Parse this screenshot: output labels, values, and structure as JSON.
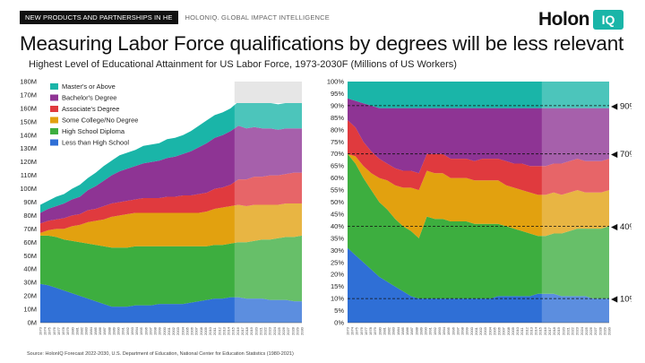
{
  "header": {
    "tag_label": "NEW PRODUCTS AND PARTNERSHIPS IN HE",
    "brand_sub": "HOLONIQ. GLOBAL IMPACT INTELLIGENCE",
    "logo_text": "Holon",
    "logo_iq": "IQ"
  },
  "title": "Measuring Labor Force qualifications by degrees will be less relevant",
  "subtitle": "Highest Level of Educational Attainment for US Labor Force, 1973-2030F (Millions of US Workers)",
  "source": "Source: HolonIQ Forecast 2022-2030, U.S. Department of Education, National Center for Education Statistics (1980-2021)",
  "colors": {
    "masters": "#1ab5a8",
    "bachelors": "#8e3494",
    "associates": "#e03a3e",
    "some_college": "#e2a10f",
    "high_school": "#3dae3f",
    "less_than_hs": "#2f6fd6"
  },
  "chart_data": [
    {
      "type": "area",
      "stacked": true,
      "x": [
        "1973",
        "1975",
        "1977",
        "1979",
        "1981",
        "1983",
        "1985",
        "1987",
        "1989",
        "1991",
        "1993",
        "1995",
        "1997",
        "1999",
        "2001",
        "2003",
        "2005",
        "2007",
        "2009",
        "2011",
        "2013",
        "2015",
        "2017",
        "2019",
        "2021",
        "2022",
        "2023",
        "2024",
        "2025",
        "2026",
        "2027",
        "2028",
        "2029",
        "2030"
      ],
      "x_labels": [
        "1973",
        "1974",
        "1975",
        "1976",
        "1977",
        "1978",
        "1979",
        "1980",
        "1981",
        "1982",
        "1983",
        "1984",
        "1985",
        "1986",
        "1987",
        "1988",
        "1989",
        "1990",
        "1991",
        "1992",
        "1993",
        "1994",
        "1995",
        "1996",
        "1997",
        "1998",
        "1999",
        "2000",
        "2001",
        "2002",
        "2003",
        "2004",
        "2005",
        "2006",
        "2007",
        "2008",
        "2009",
        "2010",
        "2011",
        "2012",
        "2013",
        "2014",
        "2015",
        "2016",
        "2017",
        "2018",
        "2019",
        "2020",
        "2021",
        "2022",
        "2023",
        "2024",
        "2025",
        "2026",
        "2027",
        "2028",
        "2029",
        "2030"
      ],
      "forecast_start": "2022",
      "ylim": [
        0,
        180
      ],
      "yticks": [
        "0M",
        "10M",
        "20M",
        "30M",
        "40M",
        "50M",
        "60M",
        "70M",
        "80M",
        "90M",
        "100M",
        "110M",
        "120M",
        "130M",
        "140M",
        "150M",
        "160M",
        "170M",
        "180M"
      ],
      "series": [
        {
          "name": "Less than High School",
          "key": "less_than_hs",
          "values": [
            29,
            28,
            26,
            24,
            22,
            20,
            18,
            16,
            14,
            12,
            12,
            12,
            13,
            13,
            13,
            14,
            14,
            14,
            14,
            15,
            16,
            17,
            18,
            18,
            19,
            19,
            18,
            18,
            18,
            17,
            17,
            17,
            16,
            16
          ]
        },
        {
          "name": "High School Diploma",
          "key": "high_school",
          "values": [
            36,
            37,
            38,
            38,
            39,
            40,
            41,
            42,
            43,
            44,
            44,
            44,
            44,
            44,
            44,
            43,
            43,
            43,
            43,
            42,
            41,
            40,
            40,
            40,
            40,
            41,
            42,
            43,
            44,
            45,
            46,
            47,
            48,
            49
          ]
        },
        {
          "name": "Some College/No Degree",
          "key": "some_college",
          "values": [
            2,
            4,
            6,
            8,
            11,
            13,
            16,
            18,
            20,
            23,
            24,
            25,
            25,
            25,
            25,
            25,
            25,
            25,
            25,
            25,
            25,
            26,
            27,
            28,
            28,
            28,
            27,
            27,
            26,
            26,
            25,
            25,
            25,
            24
          ]
        },
        {
          "name": "Associate's Degree",
          "key": "associates",
          "values": [
            7,
            7,
            7,
            8,
            8,
            8,
            9,
            9,
            10,
            10,
            10,
            10,
            10,
            11,
            11,
            11,
            12,
            12,
            13,
            13,
            14,
            14,
            15,
            15,
            16,
            19,
            20,
            21,
            21,
            22,
            22,
            22,
            23,
            23
          ]
        },
        {
          "name": "Bachelor's Degree",
          "key": "bachelors",
          "values": [
            8,
            9,
            10,
            11,
            12,
            13,
            15,
            17,
            19,
            21,
            23,
            24,
            25,
            26,
            27,
            28,
            29,
            30,
            31,
            33,
            35,
            37,
            38,
            39,
            40,
            40,
            38,
            37,
            36,
            35,
            34,
            34,
            33,
            33
          ]
        },
        {
          "name": "Master's or Above",
          "key": "masters",
          "values": [
            6,
            6,
            7,
            7,
            8,
            9,
            9,
            10,
            11,
            11,
            12,
            12,
            12,
            13,
            13,
            13,
            14,
            14,
            14,
            15,
            16,
            17,
            17,
            17,
            17,
            18,
            19,
            19,
            19,
            19,
            19,
            19,
            19,
            19
          ]
        }
      ]
    },
    {
      "type": "area",
      "stacked": true,
      "normalized": true,
      "ylim": [
        0,
        100
      ],
      "yticks": [
        "0%",
        "5%",
        "10%",
        "15%",
        "20%",
        "25%",
        "30%",
        "35%",
        "40%",
        "45%",
        "50%",
        "55%",
        "60%",
        "65%",
        "70%",
        "75%",
        "80%",
        "85%",
        "90%",
        "95%",
        "100%"
      ],
      "annotations": [
        {
          "value": 90,
          "label": "◀ 90%"
        },
        {
          "value": 70,
          "label": "◀ 70%"
        },
        {
          "value": 40,
          "label": "◀ 40%"
        },
        {
          "value": 10,
          "label": "◀ 10%"
        }
      ],
      "series": [
        {
          "name": "Less than High School",
          "key": "less_than_hs",
          "values": [
            31,
            28,
            25,
            22,
            19,
            17,
            15,
            13,
            11,
            10,
            10,
            10,
            10,
            10,
            10,
            10,
            10,
            10,
            10,
            11,
            11,
            11,
            11,
            11,
            12,
            12,
            12,
            11,
            11,
            11,
            11,
            10,
            10,
            10
          ]
        },
        {
          "name": "High School Diploma",
          "key": "high_school",
          "values": [
            39,
            38,
            35,
            33,
            31,
            30,
            28,
            27,
            27,
            25,
            34,
            33,
            33,
            32,
            32,
            32,
            31,
            31,
            31,
            30,
            29,
            28,
            27,
            26,
            24,
            24,
            25,
            26,
            27,
            28,
            28,
            29,
            29,
            30
          ]
        },
        {
          "name": "Some College/No Degree",
          "key": "some_college",
          "values": [
            0,
            3,
            5,
            7,
            10,
            12,
            14,
            16,
            18,
            20,
            19,
            19,
            19,
            18,
            18,
            18,
            18,
            18,
            18,
            18,
            17,
            17,
            17,
            17,
            17,
            17,
            17,
            16,
            16,
            16,
            15,
            15,
            15,
            15
          ]
        },
        {
          "name": "Associate's Degree",
          "key": "associates",
          "values": [
            14,
            12,
            10,
            9,
            8,
            7,
            7,
            7,
            7,
            7,
            7,
            8,
            8,
            8,
            8,
            8,
            8,
            9,
            9,
            9,
            10,
            10,
            11,
            11,
            12,
            12,
            12,
            13,
            13,
            13,
            13,
            13,
            13,
            13
          ]
        },
        {
          "name": "Bachelor's Degree",
          "key": "bachelors",
          "values": [
            9,
            11,
            16,
            19,
            21,
            23,
            25,
            26,
            26,
            27,
            19,
            19,
            19,
            21,
            21,
            21,
            22,
            21,
            21,
            21,
            22,
            23,
            23,
            24,
            24,
            24,
            23,
            23,
            22,
            21,
            22,
            22,
            22,
            21
          ]
        },
        {
          "name": "Master's or Above",
          "key": "masters",
          "values": [
            7,
            8,
            9,
            10,
            11,
            11,
            11,
            11,
            11,
            11,
            11,
            11,
            11,
            11,
            11,
            11,
            11,
            11,
            11,
            11,
            11,
            11,
            11,
            11,
            11,
            11,
            11,
            11,
            11,
            11,
            11,
            11,
            11,
            11
          ]
        }
      ]
    }
  ]
}
